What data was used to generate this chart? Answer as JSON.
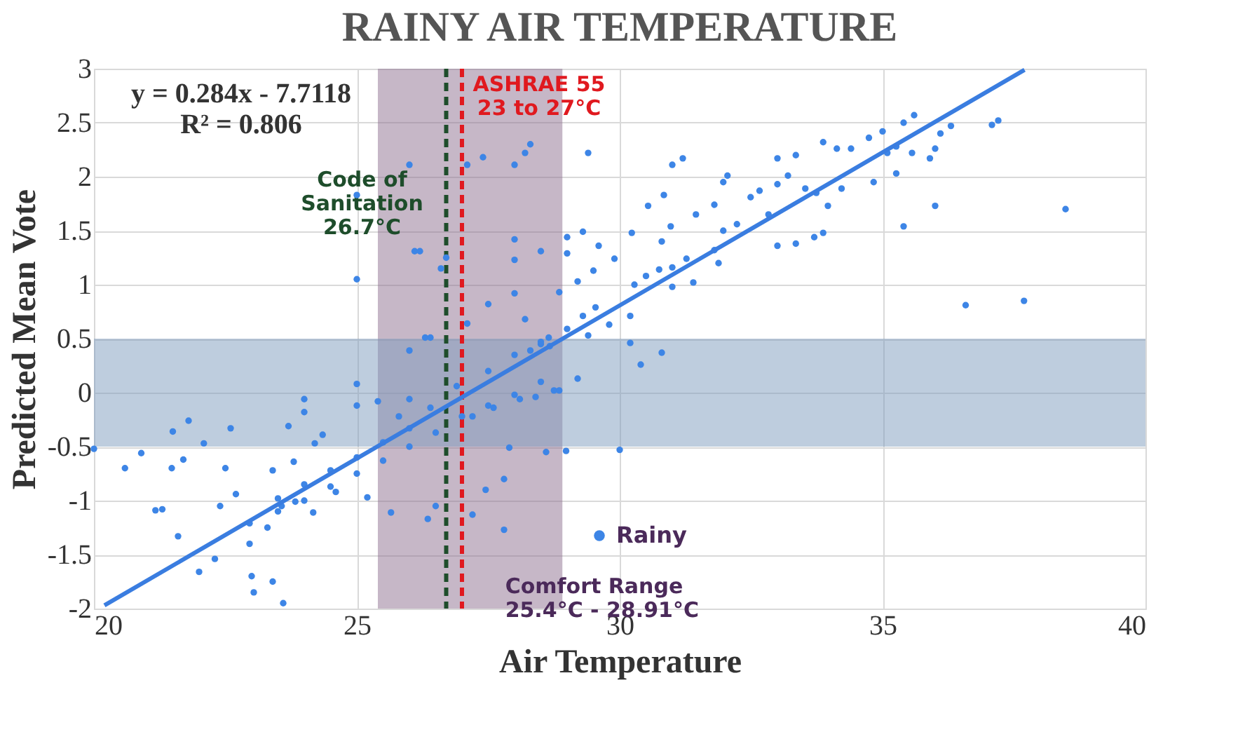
{
  "chart_data": {
    "type": "scatter",
    "title": "RAINY AIR TEMPERATURE",
    "xlabel": "Air Temperature",
    "ylabel": "Predicted Mean Vote",
    "xlim": [
      20,
      40
    ],
    "xticks": [
      20,
      25,
      30,
      35,
      40
    ],
    "ylim": [
      -2,
      3
    ],
    "yticks": [
      -2,
      -1.5,
      -1,
      -0.5,
      0,
      0.5,
      1,
      1.5,
      2,
      2.5,
      3
    ],
    "grid": true,
    "legend": "bottom",
    "marker": "circle",
    "series": [
      {
        "name": "Rainy",
        "color": "#3d85e6",
        "x": [
          20,
          20.59,
          20.9,
          21.17,
          21.3,
          21.5,
          21.8,
          21.48,
          21.7,
          21.6,
          22.09,
          22.0,
          22.3,
          22.6,
          22.4,
          22.5,
          22.7,
          23.0,
          23.04,
          23.4,
          23.6,
          23.7,
          23.8,
          24.0,
          24.0,
          23.4,
          22.96,
          23.3,
          23.57,
          23.83,
          24.17,
          24.35,
          24.2,
          24.6,
          25.0,
          25.0,
          25.0,
          25.0,
          25.4,
          25.2,
          25.65,
          26.0,
          26.0,
          26.1,
          26.2,
          26.0,
          26.3,
          26.4,
          26.6,
          26.7,
          26.35,
          26.5,
          26.9,
          27.1,
          27.1,
          27.4,
          28.0,
          28.2,
          28.3,
          27.5,
          28.0,
          28.0,
          28.0,
          28.2,
          27.8,
          27.8,
          27.45,
          27.2,
          27.9,
          28.5,
          22.96,
          23.5,
          24.0,
          24.5,
          25.0,
          25.5,
          26.0,
          26.5,
          27.0,
          27.5,
          28.0,
          28.5,
          23.5,
          24.0,
          24.5,
          25.0,
          25.5,
          26.0,
          27.5,
          28.0,
          28.5,
          25.8,
          26.4,
          27.2,
          27.6,
          28.1,
          28.4,
          28.75,
          28.6,
          28.3,
          28.5,
          28.65,
          29.4,
          31.0,
          31.2,
          30.54,
          30.84,
          30.23,
          29.6,
          29.0,
          29.0,
          29.3,
          30.97,
          30.8,
          29.9,
          29.5,
          29.2,
          28.85,
          29.54,
          29.3,
          30.2,
          29.8,
          29.4,
          30.2,
          30.4,
          30.8,
          29.2,
          28.85,
          28.98,
          30.0,
          31.45,
          31.8,
          31.97,
          32.05,
          33.0,
          33.35,
          33.87,
          34.13,
          34.4,
          34.74,
          35.0,
          35.4,
          35.6,
          35.09,
          35.26,
          35.56,
          35.9,
          36.0,
          36.1,
          36.3,
          37.08,
          37.2,
          36.0,
          35.4,
          35.26,
          34.83,
          38.48,
          36.58,
          37.69,
          33.0,
          33.35,
          33.7,
          33.87,
          33.96,
          34.22,
          33.74,
          32.49,
          32.66,
          33.0,
          33.2,
          32.23,
          31.97,
          31.8,
          31.88,
          31.27,
          31.0,
          30.75,
          30.5,
          30.28,
          31.0,
          31.4,
          32.83,
          33.53,
          28.67,
          29.0
        ],
        "values": [
          -0.52,
          -0.7,
          -0.56,
          -1.09,
          -1.08,
          -0.36,
          -0.26,
          -0.7,
          -0.62,
          -1.33,
          -0.47,
          -1.66,
          -1.54,
          -0.33,
          -1.05,
          -0.7,
          -0.94,
          -1.7,
          -1.85,
          -1.75,
          -1.95,
          -0.31,
          -0.64,
          -0.06,
          -0.18,
          -0.72,
          -1.4,
          -1.25,
          -1.05,
          -1.01,
          -1.11,
          -0.39,
          -0.47,
          -0.92,
          0.08,
          -0.12,
          1.05,
          1.83,
          -0.08,
          -0.97,
          -1.11,
          -0.06,
          2.11,
          1.31,
          1.31,
          0.39,
          0.51,
          0.51,
          1.15,
          1.25,
          -1.17,
          -1.05,
          0.06,
          0.64,
          2.11,
          2.18,
          2.11,
          2.22,
          2.3,
          0.82,
          0.92,
          1.23,
          1.42,
          0.68,
          -0.8,
          -1.27,
          -0.9,
          -1.13,
          -0.51,
          1.31,
          -1.21,
          -1.1,
          -1.0,
          -0.87,
          -0.75,
          -0.63,
          -0.5,
          -0.37,
          -0.22,
          -0.12,
          -0.02,
          0.1,
          -0.98,
          -0.85,
          -0.72,
          -0.6,
          -0.46,
          -0.33,
          0.2,
          0.35,
          0.45,
          -0.22,
          -0.14,
          -0.22,
          -0.14,
          -0.06,
          -0.04,
          0.02,
          -0.55,
          0.39,
          0.47,
          0.51,
          2.22,
          2.11,
          2.17,
          1.73,
          1.83,
          1.48,
          1.36,
          1.44,
          1.29,
          1.49,
          1.54,
          1.4,
          1.24,
          1.13,
          1.03,
          0.93,
          0.79,
          0.71,
          0.71,
          0.63,
          0.53,
          0.46,
          0.26,
          0.37,
          0.13,
          0.02,
          -0.54,
          -0.53,
          1.65,
          1.74,
          1.95,
          2.01,
          2.17,
          2.2,
          2.32,
          2.26,
          2.26,
          2.36,
          2.42,
          2.5,
          2.57,
          2.22,
          2.28,
          2.22,
          2.17,
          2.26,
          2.4,
          2.47,
          2.48,
          2.52,
          1.73,
          1.54,
          2.03,
          1.95,
          1.7,
          0.81,
          0.85,
          1.36,
          1.38,
          1.44,
          1.48,
          1.73,
          1.89,
          1.85,
          1.81,
          1.87,
          1.93,
          2.01,
          1.56,
          1.5,
          1.32,
          1.2,
          1.24,
          1.16,
          1.14,
          1.08,
          1.0,
          0.98,
          1.02,
          1.65,
          1.89,
          0.43,
          0.59
        ]
      },
      {
        "type": "line",
        "marker": "none",
        "color": "#3a7de0",
        "x": [
          20.2,
          37.7
        ],
        "values": [
          -1.97,
          2.99
        ]
      }
    ],
    "ref_lines": [
      {
        "axis": "x",
        "value": 26.7,
        "label": "Code of\nSanitation\n26.7°C",
        "color": "#1e4d2b",
        "line_style": "dashed"
      },
      {
        "axis": "x",
        "value": 27,
        "label": "ASHRAE  55\n23 to 27°C",
        "color": "#e0191f",
        "line_style": "dashed"
      }
    ],
    "bands": [
      {
        "axis": "x",
        "from": 25.4,
        "to": 28.91,
        "label": "Comfort Range\n25.4°C - 28.91°C",
        "color": "#8d6f8f"
      },
      {
        "axis": "y",
        "from": -0.5,
        "to": 0.5,
        "color": "#7e9bbd"
      }
    ],
    "annotations": [
      "y = 0.284x - 7.7118\nR² = 0.806"
    ]
  }
}
